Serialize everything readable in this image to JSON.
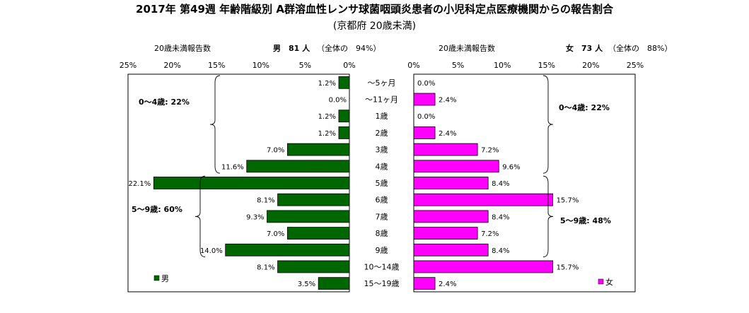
{
  "title": "2017年 第49週 年齢階級別 A群溶血性レンサ球菌咽頭炎患者の小児科定点医療機関からの報告割合",
  "subtitle": "(京都府 20歳未満)",
  "male_header": {
    "count_label": "20歳未満報告数",
    "sex": "男",
    "count": "81 人",
    "share": "（全体の　94%）"
  },
  "female_header": {
    "count_label": "20歳未満報告数",
    "sex": "女",
    "count": "73 人",
    "share": "（全体の　88%）"
  },
  "colors": {
    "male": "#006600",
    "female": "#FF00FF",
    "border": "#000000"
  },
  "chart_data": {
    "type": "bar",
    "orientation": "horizontal-butterfly",
    "categories": [
      "～5ヶ月",
      "～11ヶ月",
      "1歳",
      "2歳",
      "3歳",
      "4歳",
      "5歳",
      "6歳",
      "7歳",
      "8歳",
      "9歳",
      "10～14歳",
      "15～19歳"
    ],
    "series": [
      {
        "name": "男",
        "values": [
          1.2,
          0.0,
          1.2,
          1.2,
          7.0,
          11.6,
          22.1,
          8.1,
          9.3,
          7.0,
          14.0,
          8.1,
          3.5
        ],
        "labels": [
          "1.2%",
          "0.0%",
          "1.2%",
          "1.2%",
          "7.0%",
          "11.6%",
          "22.1%",
          "8.1%",
          "9.3%",
          "7.0%",
          "14.0%",
          "8.1%",
          "3.5%"
        ]
      },
      {
        "name": "女",
        "values": [
          0.0,
          2.4,
          0.0,
          2.4,
          7.2,
          9.6,
          8.4,
          15.7,
          8.4,
          7.2,
          8.4,
          15.7,
          2.4
        ],
        "labels": [
          "0.0%",
          "2.4%",
          "0.0%",
          "2.4%",
          "7.2%",
          "9.6%",
          "8.4%",
          "15.7%",
          "8.4%",
          "7.2%",
          "8.4%",
          "15.7%",
          "2.4%"
        ]
      }
    ],
    "xlim": [
      0,
      25
    ],
    "ticks": [
      "25%",
      "20%",
      "15%",
      "10%",
      "5%",
      "0%",
      "0%",
      "5%",
      "10%",
      "15%",
      "20%",
      "25%"
    ],
    "group_annotations": {
      "male": [
        "0～4歳: 22%",
        "5～9歳: 60%"
      ],
      "female": [
        "0～4歳: 22%",
        "5～9歳: 48%"
      ]
    },
    "legend": {
      "male": "男",
      "female": "女"
    },
    "legend_placement": "bottom-corners",
    "grid": false
  }
}
